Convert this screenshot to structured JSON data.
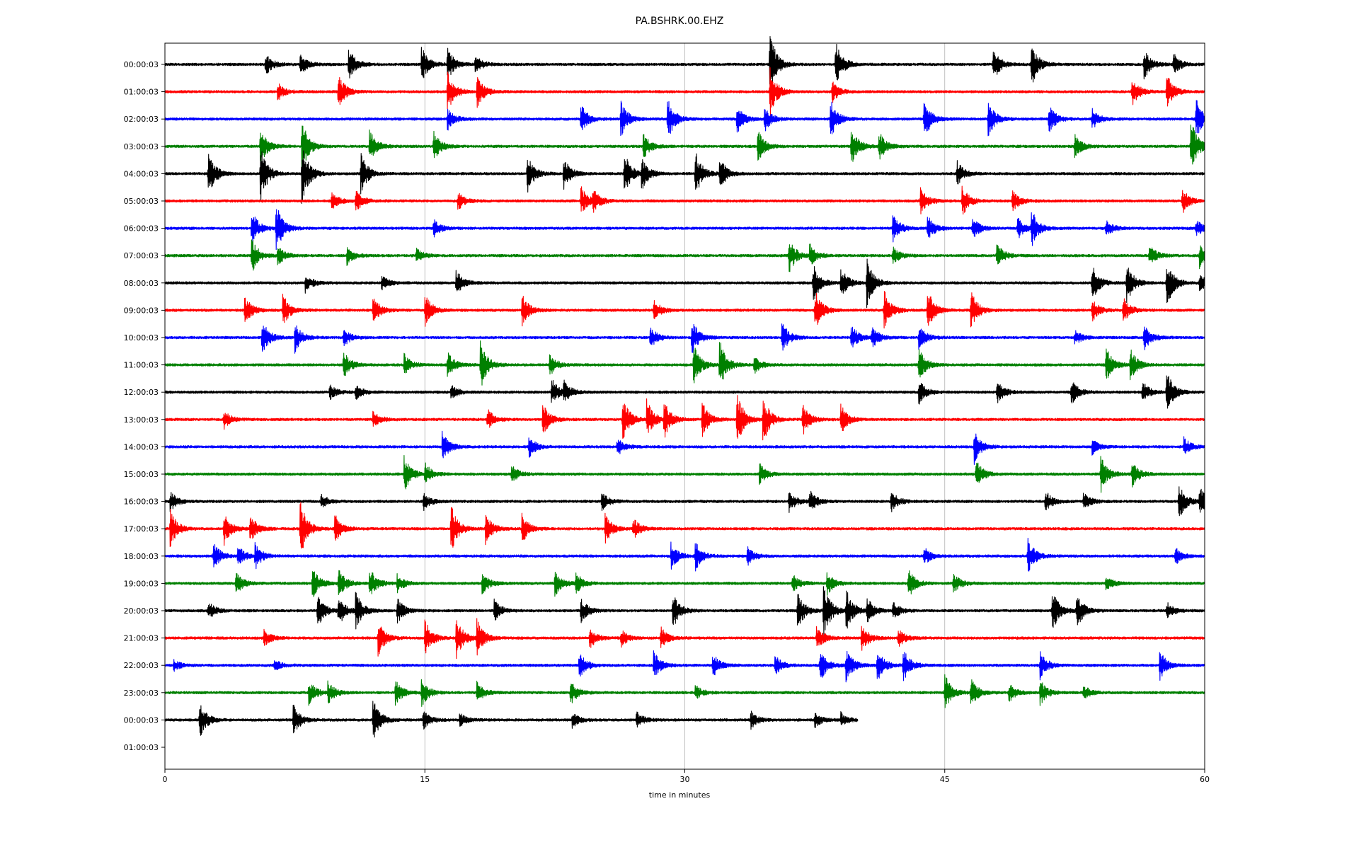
{
  "chart_data": {
    "type": "line",
    "title": "PA.BSHRK.00.EHZ",
    "xlabel": "time in minutes",
    "ylabel": "",
    "xlim": [
      0,
      60
    ],
    "x_ticks": [
      0,
      15,
      30,
      45,
      60
    ],
    "x_tick_labels": [
      "0",
      "15",
      "30",
      "45",
      "60"
    ],
    "grid_x": true,
    "grid_y": false,
    "legend": "none",
    "colors": [
      "#000000",
      "#ff0000",
      "#0000ff",
      "#008000"
    ],
    "rows": [
      {
        "label": "00:00:03",
        "color": "#000000",
        "end_minute": 60,
        "events": [
          [
            5.8,
            0.6
          ],
          [
            7.8,
            0.6
          ],
          [
            10.6,
            0.9
          ],
          [
            14.8,
            1.0
          ],
          [
            16.3,
            0.9
          ],
          [
            17.9,
            0.5
          ],
          [
            34.9,
            1.8
          ],
          [
            38.7,
            1.3
          ],
          [
            47.8,
            0.9
          ],
          [
            50.0,
            1.2
          ],
          [
            56.5,
            0.8
          ],
          [
            58.2,
            0.6
          ]
        ]
      },
      {
        "label": "01:00:03",
        "color": "#ff0000",
        "end_minute": 60,
        "events": [
          [
            6.5,
            0.5
          ],
          [
            10.0,
            1.0
          ],
          [
            16.3,
            1.2
          ],
          [
            18.0,
            0.9
          ],
          [
            34.9,
            1.4
          ],
          [
            38.5,
            0.6
          ],
          [
            55.8,
            0.8
          ],
          [
            57.8,
            1.0
          ]
        ]
      },
      {
        "label": "02:00:03",
        "color": "#0000ff",
        "end_minute": 60,
        "events": [
          [
            16.3,
            0.6
          ],
          [
            24.0,
            0.8
          ],
          [
            26.3,
            1.0
          ],
          [
            29.0,
            1.2
          ],
          [
            33.0,
            0.8
          ],
          [
            34.6,
            0.7
          ],
          [
            38.4,
            1.1
          ],
          [
            43.8,
            1.2
          ],
          [
            47.5,
            1.0
          ],
          [
            51.0,
            0.8
          ],
          [
            53.5,
            0.6
          ],
          [
            59.5,
            1.1
          ]
        ]
      },
      {
        "label": "03:00:03",
        "color": "#008000",
        "end_minute": 60,
        "events": [
          [
            5.5,
            1.0
          ],
          [
            7.9,
            1.5
          ],
          [
            11.8,
            0.9
          ],
          [
            15.5,
            0.8
          ],
          [
            27.6,
            0.7
          ],
          [
            34.2,
            0.9
          ],
          [
            39.6,
            1.2
          ],
          [
            41.2,
            0.8
          ],
          [
            52.5,
            0.7
          ],
          [
            59.2,
            1.5
          ]
        ]
      },
      {
        "label": "04:00:03",
        "color": "#000000",
        "end_minute": 60,
        "events": [
          [
            2.5,
            1.3
          ],
          [
            5.5,
            1.6
          ],
          [
            7.9,
            1.8
          ],
          [
            11.3,
            1.2
          ],
          [
            20.9,
            1.1
          ],
          [
            23.0,
            0.9
          ],
          [
            26.5,
            1.2
          ],
          [
            27.5,
            0.9
          ],
          [
            30.6,
            1.3
          ],
          [
            32.0,
            0.9
          ],
          [
            45.7,
            0.7
          ]
        ]
      },
      {
        "label": "05:00:03",
        "color": "#ff0000",
        "end_minute": 60,
        "events": [
          [
            9.6,
            0.5
          ],
          [
            11.0,
            0.6
          ],
          [
            16.9,
            0.5
          ],
          [
            24.0,
            0.8
          ],
          [
            24.7,
            0.6
          ],
          [
            43.6,
            0.8
          ],
          [
            46.0,
            0.9
          ],
          [
            48.9,
            0.6
          ],
          [
            58.7,
            0.7
          ]
        ]
      },
      {
        "label": "06:00:03",
        "color": "#0000ff",
        "end_minute": 60,
        "events": [
          [
            5.0,
            1.0
          ],
          [
            6.4,
            1.4
          ],
          [
            15.5,
            0.5
          ],
          [
            42.0,
            0.8
          ],
          [
            44.0,
            0.7
          ],
          [
            46.6,
            0.6
          ],
          [
            49.2,
            0.6
          ],
          [
            50.0,
            1.0
          ],
          [
            54.3,
            0.5
          ],
          [
            59.5,
            0.5
          ]
        ]
      },
      {
        "label": "07:00:03",
        "color": "#008000",
        "end_minute": 60,
        "events": [
          [
            5.0,
            1.0
          ],
          [
            6.5,
            0.6
          ],
          [
            10.5,
            0.5
          ],
          [
            14.5,
            0.4
          ],
          [
            36.0,
            1.0
          ],
          [
            37.2,
            0.6
          ],
          [
            42.0,
            0.5
          ],
          [
            48.0,
            0.7
          ],
          [
            56.8,
            0.6
          ],
          [
            59.7,
            0.7
          ]
        ]
      },
      {
        "label": "08:00:03",
        "color": "#000000",
        "end_minute": 60,
        "events": [
          [
            8.1,
            0.5
          ],
          [
            12.5,
            0.4
          ],
          [
            16.8,
            0.8
          ],
          [
            37.4,
            1.1
          ],
          [
            39.0,
            0.9
          ],
          [
            40.5,
            1.3
          ],
          [
            53.5,
            1.0
          ],
          [
            55.5,
            1.1
          ],
          [
            57.8,
            1.4
          ],
          [
            59.7,
            0.5
          ]
        ]
      },
      {
        "label": "09:00:03",
        "color": "#ff0000",
        "end_minute": 60,
        "events": [
          [
            4.6,
            0.8
          ],
          [
            6.8,
            0.9
          ],
          [
            12.0,
            0.8
          ],
          [
            15.0,
            0.9
          ],
          [
            20.6,
            0.9
          ],
          [
            28.2,
            0.6
          ],
          [
            37.5,
            1.2
          ],
          [
            41.5,
            1.1
          ],
          [
            44.0,
            1.2
          ],
          [
            46.5,
            1.1
          ],
          [
            53.5,
            0.6
          ],
          [
            55.3,
            0.7
          ]
        ]
      },
      {
        "label": "10:00:03",
        "color": "#0000ff",
        "end_minute": 60,
        "events": [
          [
            5.6,
            1.0
          ],
          [
            7.5,
            0.8
          ],
          [
            10.3,
            0.5
          ],
          [
            28.0,
            0.6
          ],
          [
            30.4,
            1.0
          ],
          [
            35.6,
            0.9
          ],
          [
            39.6,
            0.7
          ],
          [
            40.8,
            0.6
          ],
          [
            43.5,
            0.7
          ],
          [
            52.5,
            0.4
          ],
          [
            56.5,
            0.8
          ]
        ]
      },
      {
        "label": "11:00:03",
        "color": "#008000",
        "end_minute": 60,
        "events": [
          [
            10.3,
            0.8
          ],
          [
            13.8,
            0.6
          ],
          [
            16.3,
            0.7
          ],
          [
            18.2,
            1.4
          ],
          [
            22.2,
            0.6
          ],
          [
            30.5,
            1.2
          ],
          [
            32.0,
            1.4
          ],
          [
            34.0,
            0.5
          ],
          [
            43.5,
            1.0
          ],
          [
            54.3,
            1.0
          ],
          [
            55.7,
            0.9
          ]
        ]
      },
      {
        "label": "12:00:03",
        "color": "#000000",
        "end_minute": 60,
        "events": [
          [
            9.5,
            0.4
          ],
          [
            11.0,
            0.4
          ],
          [
            16.5,
            0.4
          ],
          [
            22.3,
            0.8
          ],
          [
            23.0,
            0.6
          ],
          [
            43.5,
            0.7
          ],
          [
            48.0,
            0.7
          ],
          [
            52.3,
            0.7
          ],
          [
            56.4,
            0.6
          ],
          [
            57.8,
            1.2
          ]
        ]
      },
      {
        "label": "13:00:03",
        "color": "#ff0000",
        "end_minute": 60,
        "events": [
          [
            3.4,
            0.5
          ],
          [
            12.0,
            0.5
          ],
          [
            18.6,
            0.6
          ],
          [
            21.8,
            0.9
          ],
          [
            26.4,
            1.3
          ],
          [
            27.8,
            1.1
          ],
          [
            28.8,
            1.0
          ],
          [
            31.0,
            1.0
          ],
          [
            33.0,
            1.6
          ],
          [
            34.5,
            1.4
          ],
          [
            36.8,
            0.9
          ],
          [
            39.0,
            0.8
          ]
        ]
      },
      {
        "label": "14:00:03",
        "color": "#0000ff",
        "end_minute": 60,
        "events": [
          [
            16.0,
            0.8
          ],
          [
            21.0,
            0.6
          ],
          [
            26.1,
            0.5
          ],
          [
            46.7,
            0.9
          ],
          [
            53.5,
            0.4
          ],
          [
            58.8,
            0.5
          ]
        ]
      },
      {
        "label": "15:00:03",
        "color": "#008000",
        "end_minute": 60,
        "events": [
          [
            13.8,
            1.0
          ],
          [
            15.0,
            0.6
          ],
          [
            20.0,
            0.5
          ],
          [
            34.3,
            0.6
          ],
          [
            46.8,
            0.8
          ],
          [
            54.0,
            1.0
          ],
          [
            55.8,
            0.7
          ]
        ]
      },
      {
        "label": "16:00:03",
        "color": "#000000",
        "end_minute": 60,
        "events": [
          [
            0.3,
            0.6
          ],
          [
            9.0,
            0.4
          ],
          [
            14.9,
            0.5
          ],
          [
            25.2,
            0.5
          ],
          [
            36.0,
            0.6
          ],
          [
            37.2,
            0.7
          ],
          [
            41.9,
            0.6
          ],
          [
            50.8,
            0.6
          ],
          [
            53.0,
            0.5
          ],
          [
            58.5,
            1.0
          ],
          [
            59.7,
            0.8
          ]
        ]
      },
      {
        "label": "17:00:03",
        "color": "#ff0000",
        "end_minute": 60,
        "events": [
          [
            0.3,
            1.1
          ],
          [
            3.4,
            0.9
          ],
          [
            4.9,
            0.8
          ],
          [
            7.8,
            1.6
          ],
          [
            9.8,
            0.8
          ],
          [
            16.5,
            1.4
          ],
          [
            18.5,
            0.8
          ],
          [
            20.6,
            0.8
          ],
          [
            25.4,
            0.8
          ],
          [
            27.0,
            0.6
          ]
        ]
      },
      {
        "label": "18:00:03",
        "color": "#0000ff",
        "end_minute": 60,
        "events": [
          [
            2.8,
            0.8
          ],
          [
            4.2,
            0.6
          ],
          [
            5.2,
            0.7
          ],
          [
            29.2,
            0.7
          ],
          [
            30.6,
            0.8
          ],
          [
            33.6,
            0.6
          ],
          [
            43.8,
            0.5
          ],
          [
            49.8,
            1.0
          ],
          [
            58.3,
            0.5
          ]
        ]
      },
      {
        "label": "19:00:03",
        "color": "#008000",
        "end_minute": 60,
        "events": [
          [
            4.1,
            0.6
          ],
          [
            8.5,
            0.9
          ],
          [
            10.0,
            0.8
          ],
          [
            11.8,
            0.9
          ],
          [
            13.4,
            0.5
          ],
          [
            18.3,
            0.6
          ],
          [
            22.5,
            0.7
          ],
          [
            23.7,
            0.6
          ],
          [
            36.2,
            0.5
          ],
          [
            38.2,
            0.7
          ],
          [
            42.9,
            0.8
          ],
          [
            45.5,
            0.6
          ],
          [
            54.3,
            0.4
          ]
        ]
      },
      {
        "label": "20:00:03",
        "color": "#000000",
        "end_minute": 60,
        "events": [
          [
            2.5,
            0.5
          ],
          [
            8.8,
            1.0
          ],
          [
            10.0,
            0.9
          ],
          [
            11.0,
            1.0
          ],
          [
            13.4,
            0.7
          ],
          [
            19.0,
            0.6
          ],
          [
            24.0,
            0.7
          ],
          [
            29.3,
            1.0
          ],
          [
            36.5,
            1.1
          ],
          [
            38.0,
            1.6
          ],
          [
            39.3,
            1.2
          ],
          [
            40.5,
            0.7
          ],
          [
            42.0,
            0.5
          ],
          [
            51.2,
            1.2
          ],
          [
            52.6,
            1.0
          ],
          [
            57.8,
            0.5
          ]
        ]
      },
      {
        "label": "21:00:03",
        "color": "#ff0000",
        "end_minute": 60,
        "events": [
          [
            5.7,
            0.5
          ],
          [
            12.3,
            1.0
          ],
          [
            15.0,
            1.0
          ],
          [
            16.8,
            1.2
          ],
          [
            18.0,
            1.0
          ],
          [
            24.5,
            0.6
          ],
          [
            26.3,
            0.5
          ],
          [
            28.6,
            0.6
          ],
          [
            37.6,
            0.7
          ],
          [
            40.2,
            0.8
          ],
          [
            42.3,
            0.5
          ]
        ]
      },
      {
        "label": "22:00:03",
        "color": "#0000ff",
        "end_minute": 60,
        "events": [
          [
            0.5,
            0.3
          ],
          [
            6.3,
            0.3
          ],
          [
            23.9,
            0.8
          ],
          [
            28.2,
            0.8
          ],
          [
            31.6,
            0.7
          ],
          [
            35.2,
            0.6
          ],
          [
            37.8,
            0.9
          ],
          [
            39.3,
            0.9
          ],
          [
            41.1,
            1.0
          ],
          [
            42.6,
            0.9
          ],
          [
            50.5,
            0.8
          ],
          [
            57.4,
            0.8
          ]
        ]
      },
      {
        "label": "23:00:03",
        "color": "#008000",
        "end_minute": 60,
        "events": [
          [
            8.3,
            0.7
          ],
          [
            9.4,
            0.6
          ],
          [
            13.3,
            0.7
          ],
          [
            14.8,
            0.8
          ],
          [
            18.0,
            0.6
          ],
          [
            23.4,
            0.7
          ],
          [
            30.6,
            0.4
          ],
          [
            45.0,
            1.0
          ],
          [
            46.5,
            0.8
          ],
          [
            48.7,
            0.5
          ],
          [
            50.5,
            0.7
          ],
          [
            53.0,
            0.4
          ]
        ]
      },
      {
        "label": "00:00:03",
        "color": "#000000",
        "end_minute": 40,
        "events": [
          [
            2.0,
            1.0
          ],
          [
            7.4,
            0.9
          ],
          [
            12.0,
            1.2
          ],
          [
            14.9,
            0.5
          ],
          [
            17.0,
            0.4
          ],
          [
            23.5,
            0.4
          ],
          [
            27.2,
            0.5
          ],
          [
            33.8,
            0.5
          ],
          [
            37.5,
            0.4
          ],
          [
            39.0,
            0.4
          ]
        ]
      },
      {
        "label": "01:00:03",
        "color": "#000000",
        "end_minute": 0,
        "events": []
      }
    ]
  }
}
